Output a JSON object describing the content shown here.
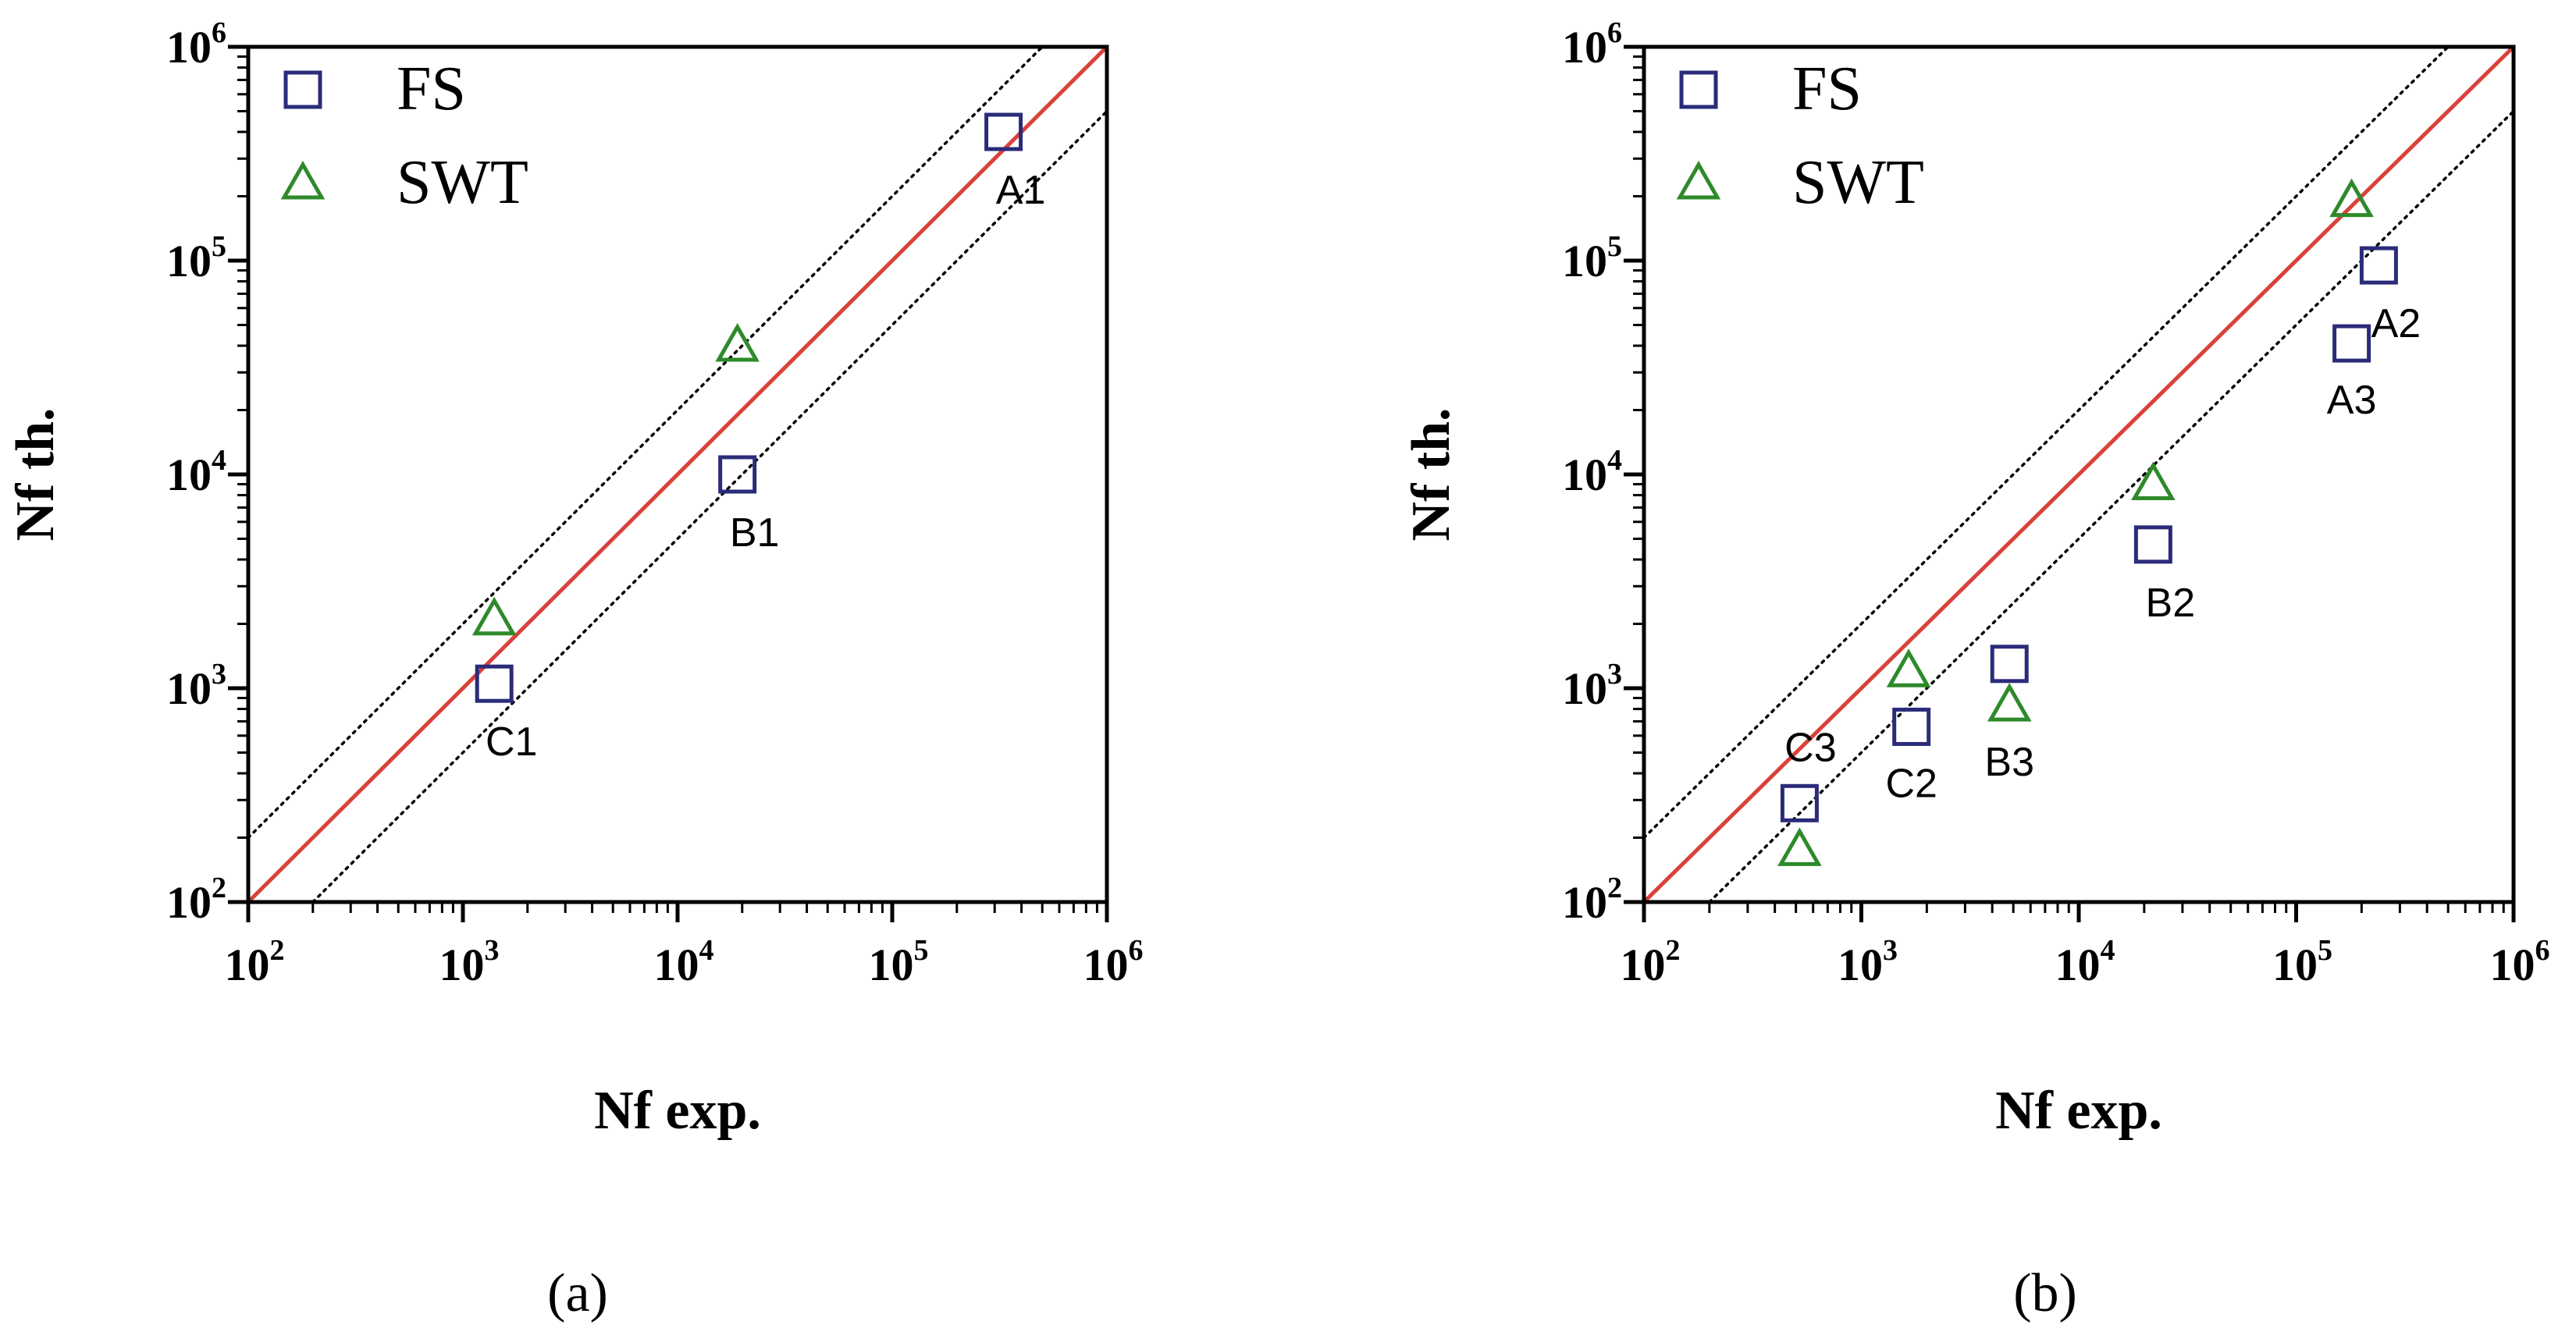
{
  "chart_data": [
    {
      "type": "scatter",
      "caption": "(a)",
      "xlabel": "Nf exp.",
      "ylabel": "Nf th.",
      "xscale": "log",
      "yscale": "log",
      "xlim": [
        100,
        1000000
      ],
      "ylim": [
        100,
        1000000
      ],
      "xticks": [
        {
          "base": "10",
          "exp": "2"
        },
        {
          "base": "10",
          "exp": "3"
        },
        {
          "base": "10",
          "exp": "4"
        },
        {
          "base": "10",
          "exp": "5"
        },
        {
          "base": "10",
          "exp": "6"
        }
      ],
      "yticks": [
        {
          "base": "10",
          "exp": "2"
        },
        {
          "base": "10",
          "exp": "3"
        },
        {
          "base": "10",
          "exp": "4"
        },
        {
          "base": "10",
          "exp": "5"
        },
        {
          "base": "10",
          "exp": "6"
        }
      ],
      "grid": false,
      "legend": "top-left",
      "reference_lines": {
        "identity_color": "#d9423a",
        "band_factor": 2
      },
      "series": [
        {
          "name": "FS",
          "marker": "square",
          "color": "#2b2b7a",
          "points": [
            {
              "x": 330000,
              "y": 400000
            },
            {
              "x": 19000,
              "y": 10000
            },
            {
              "x": 1400,
              "y": 1050
            }
          ]
        },
        {
          "name": "SWT",
          "marker": "triangle",
          "color": "#2e8a2a",
          "points": [
            {
              "x": 19000,
              "y": 40000
            },
            {
              "x": 1400,
              "y": 2100
            }
          ]
        }
      ],
      "labels": [
        {
          "text": "A1",
          "x": 330000,
          "y": 400000,
          "pos": "below-right"
        },
        {
          "text": "B1",
          "x": 19000,
          "y": 10000,
          "pos": "below-right"
        },
        {
          "text": "C1",
          "x": 1400,
          "y": 1050,
          "pos": "below-right"
        }
      ]
    },
    {
      "type": "scatter",
      "caption": "(b)",
      "xlabel": "Nf exp.",
      "ylabel": "Nf th.",
      "xscale": "log",
      "yscale": "log",
      "xlim": [
        100,
        1000000
      ],
      "ylim": [
        100,
        1000000
      ],
      "xticks": [
        {
          "base": "10",
          "exp": "2"
        },
        {
          "base": "10",
          "exp": "3"
        },
        {
          "base": "10",
          "exp": "4"
        },
        {
          "base": "10",
          "exp": "5"
        },
        {
          "base": "10",
          "exp": "6"
        }
      ],
      "yticks": [
        {
          "base": "10",
          "exp": "2"
        },
        {
          "base": "10",
          "exp": "3"
        },
        {
          "base": "10",
          "exp": "4"
        },
        {
          "base": "10",
          "exp": "5"
        },
        {
          "base": "10",
          "exp": "6"
        }
      ],
      "grid": false,
      "legend": "top-left",
      "reference_lines": {
        "identity_color": "#d9423a",
        "band_factor": 2
      },
      "series": [
        {
          "name": "FS",
          "marker": "square",
          "color": "#2b2b7a",
          "points": [
            {
              "x": 240000,
              "y": 95000
            },
            {
              "x": 180000,
              "y": 41000
            },
            {
              "x": 22000,
              "y": 4700
            },
            {
              "x": 4800,
              "y": 1300
            },
            {
              "x": 1700,
              "y": 660
            },
            {
              "x": 520,
              "y": 290
            }
          ]
        },
        {
          "name": "SWT",
          "marker": "triangle",
          "color": "#2e8a2a",
          "points": [
            {
              "x": 180000,
              "y": 190000
            },
            {
              "x": 22000,
              "y": 9000
            },
            {
              "x": 4800,
              "y": 830
            },
            {
              "x": 1650,
              "y": 1200
            },
            {
              "x": 520,
              "y": 175
            }
          ]
        }
      ],
      "labels": [
        {
          "text": "A2",
          "x": 240000,
          "y": 95000,
          "pos": "below-right"
        },
        {
          "text": "A3",
          "x": 180000,
          "y": 41000,
          "pos": "below"
        },
        {
          "text": "B2",
          "x": 22000,
          "y": 4700,
          "pos": "below-right"
        },
        {
          "text": "B3",
          "x": 4800,
          "y": 830,
          "pos": "below"
        },
        {
          "text": "C2",
          "x": 1700,
          "y": 660,
          "pos": "below"
        },
        {
          "text": "C3",
          "x": 520,
          "y": 290,
          "pos": "above"
        }
      ]
    }
  ]
}
